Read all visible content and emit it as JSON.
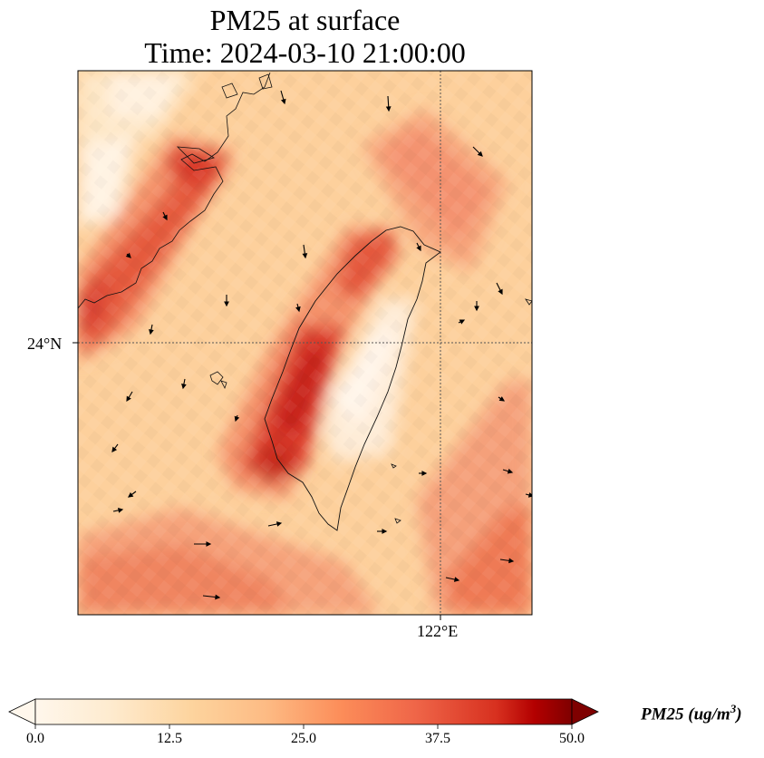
{
  "title": {
    "line1": "PM25 at surface",
    "line2": "Time: 2024-03-10 21:00:00"
  },
  "axes": {
    "lat_tick_label": "24°N",
    "lon_tick_label": "122°E",
    "gridlines": "dotted",
    "lat_ticks_deg": [
      24
    ],
    "lon_ticks_deg": [
      122
    ]
  },
  "colorbar": {
    "label_main": "PM25 (ug/m",
    "label_exp": "3",
    "label_close": ")",
    "colormap": "OrRd",
    "extend": "both",
    "range": [
      0,
      50
    ],
    "ticks": [
      "0.0",
      "12.5",
      "25.0",
      "37.5",
      "50.0"
    ],
    "colors": [
      "#fff7ec",
      "#fdd49e",
      "#fc8d59",
      "#d7301f",
      "#990000",
      "#7f0000"
    ]
  },
  "map": {
    "type": "filled-grid + wind vectors",
    "region": "Taiwan Strait",
    "features": [
      "coastline Taiwan",
      "coastline Fujian",
      "Penghu islands"
    ],
    "pm25_scale_max": 50
  }
}
